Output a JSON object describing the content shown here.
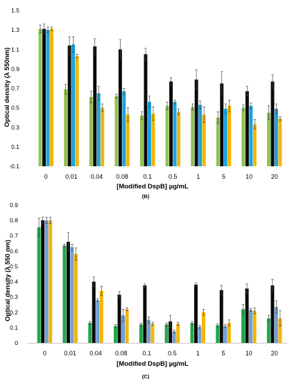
{
  "chart_data": [
    {
      "type": "bar",
      "panel_label": "(B)",
      "xlabel": "[Modified DspB] µg/mL",
      "ylabel": "Optical density (λ 550nm)",
      "ylim": [
        -0.1,
        1.5
      ],
      "yticks": [
        "1.5",
        "1.3",
        "1.1",
        "0.9",
        "0.7",
        "0.5",
        "0.3",
        "0.1",
        "-0.1"
      ],
      "categories": [
        "0",
        "0.01",
        "0.04",
        "0.08",
        "0.1",
        "0.5",
        "1",
        "5",
        "10",
        "20"
      ],
      "grid": false,
      "legend": "none",
      "series": [
        {
          "color": "#92c353",
          "values": [
            1.31,
            0.69,
            0.61,
            0.62,
            0.42,
            0.52,
            0.51,
            0.4,
            0.5,
            0.45
          ],
          "errors": [
            0.04,
            0.05,
            0.06,
            0.02,
            0.04,
            0.04,
            0.03,
            0.06,
            0.03,
            0.07
          ]
        },
        {
          "color": "#0a0a0a",
          "values": [
            1.31,
            1.14,
            1.13,
            1.1,
            1.05,
            0.77,
            0.79,
            0.75,
            0.67,
            0.77
          ],
          "errors": [
            0.05,
            0.09,
            0.08,
            0.1,
            0.06,
            0.04,
            0.1,
            0.12,
            0.05,
            0.07
          ]
        },
        {
          "color": "#1aa3e0",
          "values": [
            1.3,
            1.15,
            0.65,
            0.67,
            0.56,
            0.56,
            0.53,
            0.49,
            0.52,
            0.49
          ],
          "errors": [
            0.03,
            0.08,
            0.07,
            0.03,
            0.06,
            0.02,
            0.04,
            0.05,
            0.03,
            0.05
          ]
        },
        {
          "color": "#f5b400",
          "values": [
            1.31,
            1.03,
            0.5,
            0.43,
            0.44,
            0.46,
            0.43,
            0.52,
            0.33,
            0.39
          ],
          "errors": [
            0.02,
            0.02,
            0.04,
            0.07,
            0.07,
            0.03,
            0.08,
            0.06,
            0.05,
            0.02
          ]
        }
      ]
    },
    {
      "type": "bar",
      "panel_label": "(C)",
      "xlabel": "[Modified DspB] µg/mL",
      "ylabel": "Optical density (λ 550 nm)",
      "ylim": [
        0,
        0.9
      ],
      "yticks": [
        "0.9",
        "0.8",
        "0.7",
        "0.6",
        "0.5",
        "0.4",
        "0.3",
        "0.2",
        "0.1",
        "0"
      ],
      "categories": [
        "0",
        "0.01",
        "0.04",
        "0.08",
        "0.1",
        "0.5",
        "1",
        "5",
        "10",
        "20"
      ],
      "grid": false,
      "legend": "none",
      "series": [
        {
          "color": "#1fa84b",
          "values": [
            0.755,
            0.635,
            0.13,
            0.11,
            0.12,
            0.12,
            0.13,
            0.115,
            0.22,
            0.16
          ],
          "errors": [
            0.06,
            0.01,
            0.01,
            0.01,
            0.01,
            0.01,
            0.01,
            0.01,
            0.03,
            0.02
          ]
        },
        {
          "color": "#0a0a0a",
          "values": [
            0.8,
            0.66,
            0.4,
            0.315,
            0.375,
            0.14,
            0.38,
            0.345,
            0.355,
            0.375
          ],
          "errors": [
            0.02,
            0.06,
            0.03,
            0.02,
            0.01,
            0.04,
            0.01,
            0.03,
            0.03,
            0.04
          ]
        },
        {
          "color": "#6fa0d8",
          "values": [
            0.8,
            0.625,
            0.28,
            0.18,
            0.15,
            0.075,
            0.105,
            0.11,
            0.215,
            0.235
          ],
          "errors": [
            0.02,
            0.02,
            0.01,
            0.04,
            0.02,
            0.01,
            0.01,
            0.01,
            0.01,
            0.04
          ]
        },
        {
          "color": "#f5b400",
          "values": [
            0.8,
            0.58,
            0.34,
            0.22,
            0.125,
            0.125,
            0.2,
            0.13,
            0.21,
            0.16
          ],
          "errors": [
            0.02,
            0.04,
            0.03,
            0.01,
            0.01,
            0.01,
            0.02,
            0.02,
            0.02,
            0.05
          ]
        }
      ]
    }
  ]
}
